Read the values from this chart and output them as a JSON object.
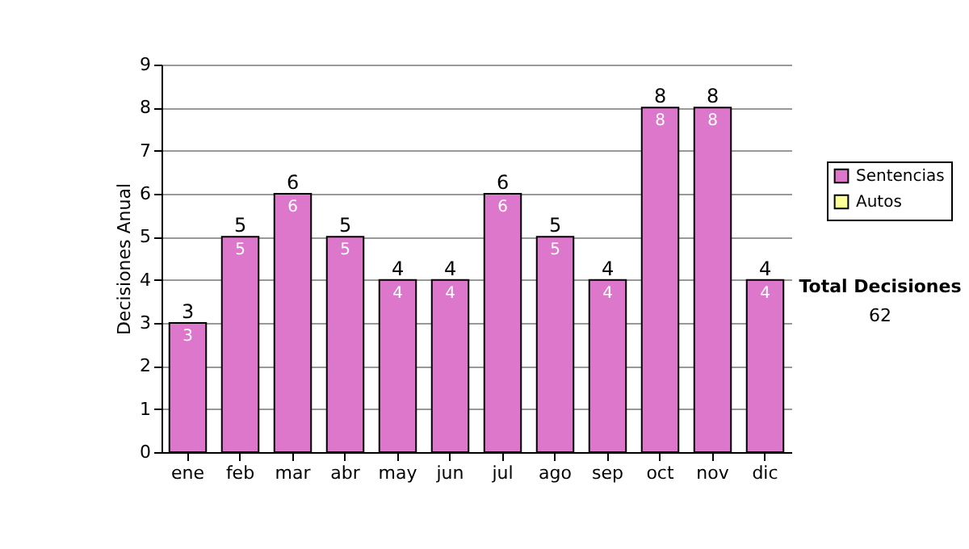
{
  "chart_data": {
    "type": "bar",
    "ylabel": "Decisiones Anual",
    "categories": [
      "ene",
      "feb",
      "mar",
      "abr",
      "may",
      "jun",
      "jul",
      "ago",
      "sep",
      "oct",
      "nov",
      "dic"
    ],
    "series": [
      {
        "name": "Sentencias",
        "color": "#dd77cc",
        "values": [
          3,
          5,
          6,
          5,
          4,
          4,
          6,
          5,
          4,
          8,
          8,
          4
        ],
        "value_labels": [
          "3",
          "5",
          "6",
          "5",
          "4",
          "4",
          "6",
          "5",
          "4",
          "8",
          "8",
          "4"
        ]
      },
      {
        "name": "Autos",
        "color": "#ffff99",
        "values": [
          null,
          null,
          null,
          null,
          null,
          null,
          null,
          null,
          null,
          null,
          null,
          null
        ]
      }
    ],
    "stacked": true,
    "totals": [
      "3",
      "5",
      "6",
      "5",
      "4",
      "4",
      "6",
      "5",
      "4",
      "8",
      "8",
      "4"
    ],
    "ylim": [
      0,
      9
    ],
    "yticks": [
      0,
      1,
      2,
      3,
      4,
      5,
      6,
      7,
      8,
      9
    ],
    "grid": true,
    "legend": "right",
    "annotations": [
      "Total Decisiones",
      "62"
    ]
  }
}
